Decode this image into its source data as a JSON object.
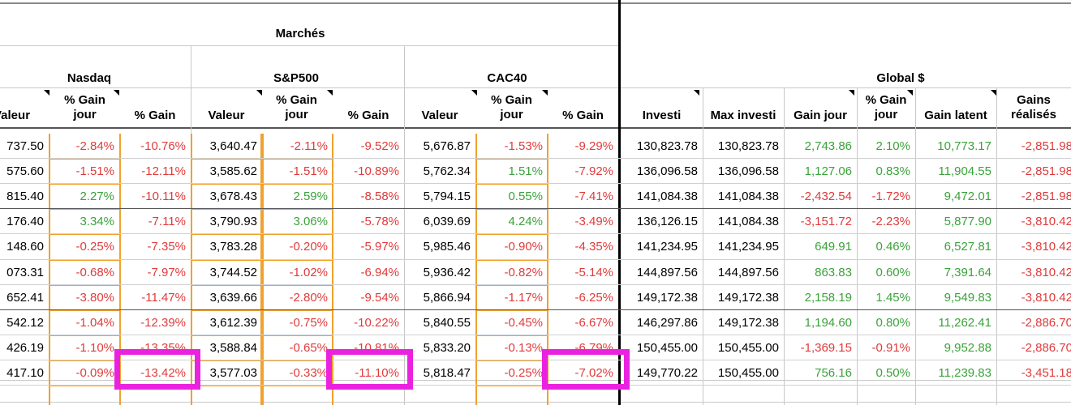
{
  "colors": {
    "negative": "#e03b3b",
    "positive": "#3aa33a",
    "orange_border": "#f0a22e",
    "highlight": "#ea22e0"
  },
  "headers": {
    "marches": "Marchés",
    "nasdaq": "Nasdaq",
    "sp500": "S&P500",
    "cac40": "CAC40",
    "global": "Global $",
    "valeur_partial": "Valeur",
    "valeur": "Valeur",
    "gain_jour_l1": "% Gain",
    "gain_jour_l2": "jour",
    "gain": "% Gain",
    "investi": "Investi",
    "max_investi": "Max investi",
    "gain_jour_abs": "Gain jour",
    "gain_latent": "Gain latent",
    "gains_realises_l1": "Gains",
    "gains_realises_l2": "réalisés"
  },
  "rows": [
    [
      "737.50",
      "-2.84%",
      "-10.76%",
      "3,640.47",
      "-2.11%",
      "-9.52%",
      "5,676.87",
      "-1.53%",
      "-9.29%",
      "130,823.78",
      "130,823.78",
      "2,743.86",
      "2.10%",
      "10,773.17",
      "-2,851.98"
    ],
    [
      "575.60",
      "-1.51%",
      "-12.11%",
      "3,585.62",
      "-1.51%",
      "-10.89%",
      "5,762.34",
      "1.51%",
      "-7.92%",
      "136,096.58",
      "136,096.58",
      "1,127.06",
      "0.83%",
      "11,904.55",
      "-2,851.98"
    ],
    [
      "815.40",
      "2.27%",
      "-10.11%",
      "3,678.43",
      "2.59%",
      "-8.58%",
      "5,794.15",
      "0.55%",
      "-7.41%",
      "141,084.38",
      "141,084.38",
      "-2,432.54",
      "-1.72%",
      "9,472.01",
      "-2,851.98"
    ],
    [
      "176.40",
      "3.34%",
      "-7.11%",
      "3,790.93",
      "3.06%",
      "-5.78%",
      "6,039.69",
      "4.24%",
      "-3.49%",
      "136,126.15",
      "141,084.38",
      "-3,151.72",
      "-2.23%",
      "5,877.90",
      "-3,810.42"
    ],
    [
      "148.60",
      "-0.25%",
      "-7.35%",
      "3,783.28",
      "-0.20%",
      "-5.97%",
      "5,985.46",
      "-0.90%",
      "-4.35%",
      "141,234.95",
      "141,234.95",
      "649.91",
      "0.46%",
      "6,527.81",
      "-3,810.42"
    ],
    [
      "073.31",
      "-0.68%",
      "-7.97%",
      "3,744.52",
      "-1.02%",
      "-6.94%",
      "5,936.42",
      "-0.82%",
      "-5.14%",
      "144,897.56",
      "144,897.56",
      "863.83",
      "0.60%",
      "7,391.64",
      "-3,810.42"
    ],
    [
      "652.41",
      "-3.80%",
      "-11.47%",
      "3,639.66",
      "-2.80%",
      "-9.54%",
      "5,866.94",
      "-1.17%",
      "-6.25%",
      "149,172.38",
      "149,172.38",
      "2,158.19",
      "1.45%",
      "9,549.83",
      "-3,810.42"
    ],
    [
      "542.12",
      "-1.04%",
      "-12.39%",
      "3,612.39",
      "-0.75%",
      "-10.22%",
      "5,840.55",
      "-0.45%",
      "-6.67%",
      "146,297.86",
      "149,172.38",
      "1,194.60",
      "0.80%",
      "11,262.41",
      "-2,886.70"
    ],
    [
      "426.19",
      "-1.10%",
      "-13.35%",
      "3,588.84",
      "-0.65%",
      "-10.81%",
      "5,833.20",
      "-0.13%",
      "-6.79%",
      "150,455.00",
      "150,455.00",
      "-1,369.15",
      "-0.91%",
      "9,952.88",
      "-2,886.70"
    ],
    [
      "417.10",
      "-0.09%",
      "-13.42%",
      "3,577.03",
      "-0.33%",
      "-11.10%",
      "5,818.47",
      "-0.25%",
      "-7.02%",
      "149,770.22",
      "150,455.00",
      "756.16",
      "0.50%",
      "11,239.83",
      "-3,451.18"
    ]
  ]
}
